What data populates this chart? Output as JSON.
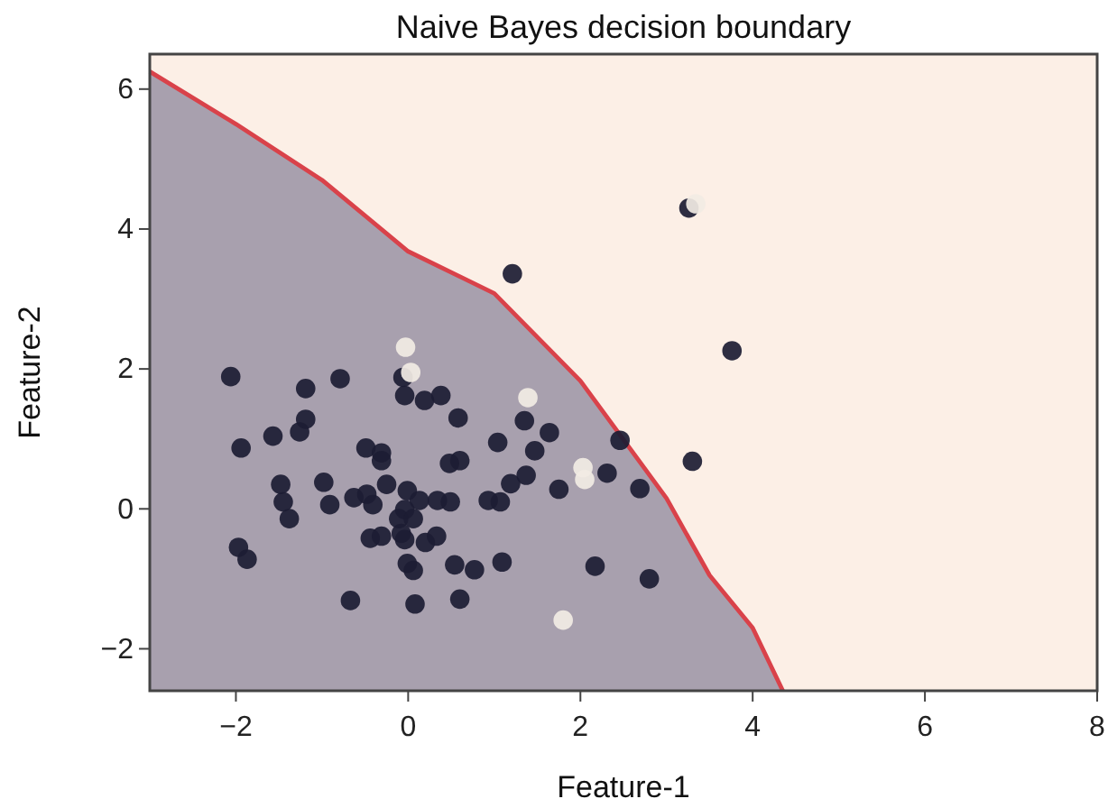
{
  "chart_data": {
    "type": "scatter",
    "title": "Naive Bayes decision boundary",
    "xlabel": "Feature-1",
    "ylabel": "Feature-2",
    "xlim": [
      -3,
      8
    ],
    "ylim": [
      -2.6,
      6.5
    ],
    "xticks": [
      {
        "value": -2,
        "label": "−2"
      },
      0,
      2,
      4,
      6,
      8
    ],
    "yticks": [
      {
        "value": -2,
        "label": "−2"
      },
      0,
      2,
      4,
      6
    ],
    "grid": false,
    "series": [
      {
        "type": "line",
        "color": "#d9424a",
        "x": [
          -3,
          -2,
          -1,
          0,
          1,
          2,
          3,
          3.5,
          4,
          4.35
        ],
        "values": [
          6.25,
          5.5,
          4.7,
          3.68,
          3.08,
          1.83,
          0.15,
          -0.95,
          -1.7,
          -2.6
        ]
      },
      {
        "marker": "circle",
        "color": "#1c1c33",
        "x": [
          -2.06,
          -1.19,
          -0.79,
          -0.06,
          -0.04,
          0.19,
          0.38,
          0.58,
          -1.19,
          -1.26,
          -1.57,
          -1.94,
          -0.49,
          -0.31,
          -0.31,
          0.48,
          0.6,
          1.04,
          -1.48,
          -0.98,
          -0.25,
          -1.45,
          -0.91,
          -1.38,
          -0.63,
          -0.48,
          -0.41,
          -0.01,
          0.13,
          0.34,
          0.49,
          -0.04,
          -0.11,
          0.06,
          -0.08,
          0.93,
          1.07,
          -0.44,
          -0.31,
          -0.04,
          0.2,
          0.33,
          -1.97,
          -1.87,
          -0.01,
          0.06,
          0.54,
          0.77,
          1.09,
          -0.67,
          0.08,
          0.6,
          3.26,
          1.21,
          3.76,
          1.35,
          1.64,
          1.47,
          2.46,
          2.31,
          2.69,
          3.3,
          1.75,
          1.37,
          1.19,
          2.17,
          2.8
        ],
        "values": [
          1.89,
          1.72,
          1.86,
          1.88,
          1.62,
          1.55,
          1.62,
          1.3,
          1.28,
          1.1,
          1.04,
          0.87,
          0.87,
          0.8,
          0.69,
          0.65,
          0.69,
          0.95,
          0.35,
          0.38,
          0.35,
          0.1,
          0.06,
          -0.14,
          0.16,
          0.21,
          0.06,
          0.26,
          0.12,
          0.12,
          0.1,
          -0.01,
          -0.14,
          -0.14,
          -0.35,
          0.12,
          0.1,
          -0.42,
          -0.39,
          -0.44,
          -0.48,
          -0.39,
          -0.55,
          -0.72,
          -0.78,
          -0.88,
          -0.8,
          -0.87,
          -0.76,
          -1.31,
          -1.36,
          -1.29,
          4.3,
          3.36,
          2.26,
          1.26,
          1.09,
          0.83,
          0.98,
          0.51,
          0.29,
          0.68,
          0.28,
          0.48,
          0.36,
          -0.82,
          -1.0
        ]
      },
      {
        "marker": "circle",
        "color": "#f2ece4",
        "x": [
          -0.03,
          0.03,
          1.39,
          2.03,
          2.05,
          1.8,
          3.34
        ],
        "values": [
          2.31,
          1.95,
          1.59,
          0.59,
          0.42,
          -1.59,
          4.36
        ]
      }
    ]
  }
}
